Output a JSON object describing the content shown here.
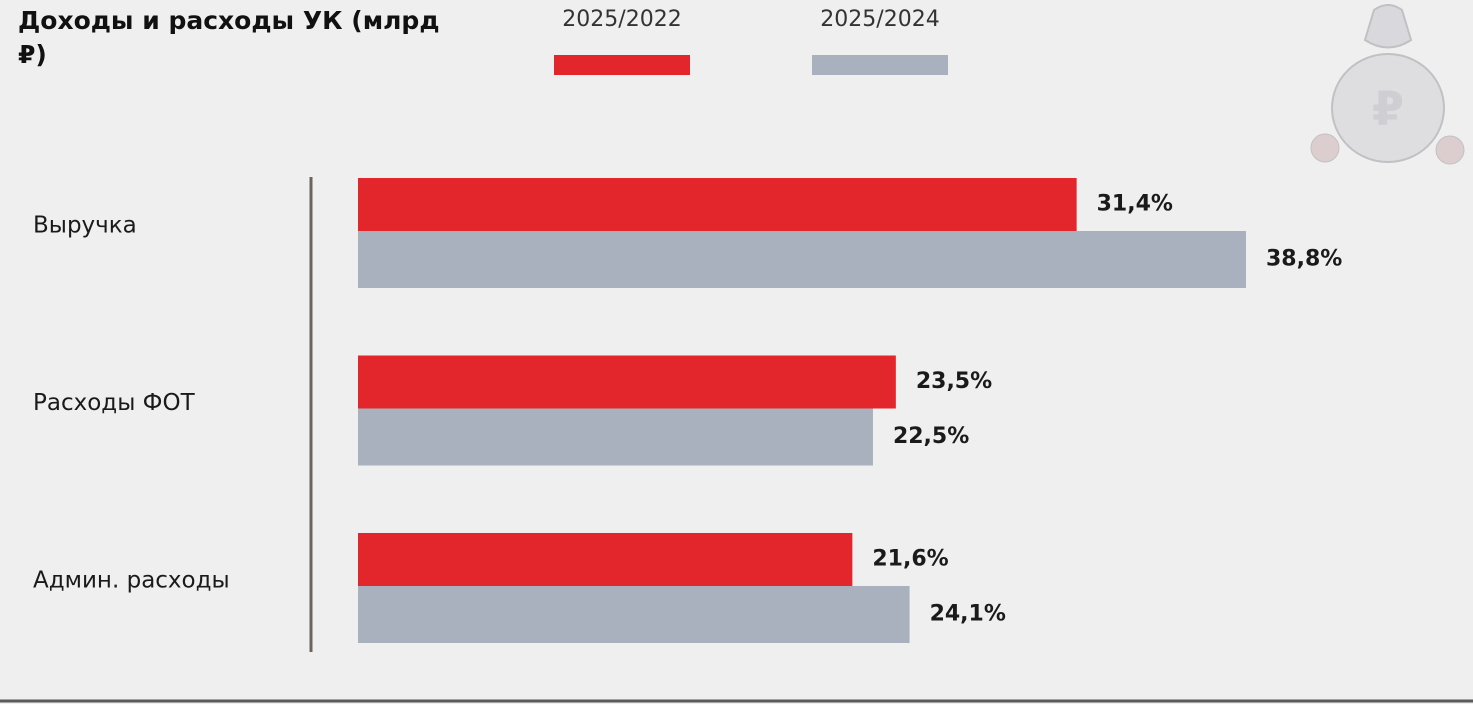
{
  "chart_data": {
    "type": "hbar",
    "title": "Доходы и расходы УК (млрд ₽)",
    "categories": [
      "Выручка",
      "Расходы ФОТ",
      "Админ. расходы"
    ],
    "series": [
      {
        "name": "2025/2022",
        "color": "#e3262c",
        "values": [
          31.4,
          23.5,
          21.6
        ],
        "value_labels": [
          "31,4%",
          "23,5%",
          "21,6%"
        ]
      },
      {
        "name": "2025/2024",
        "color": "#a9b1be",
        "values": [
          38.8,
          22.5,
          24.1
        ],
        "value_labels": [
          "38,8%",
          "22,5%",
          "24,1%"
        ]
      }
    ]
  }
}
